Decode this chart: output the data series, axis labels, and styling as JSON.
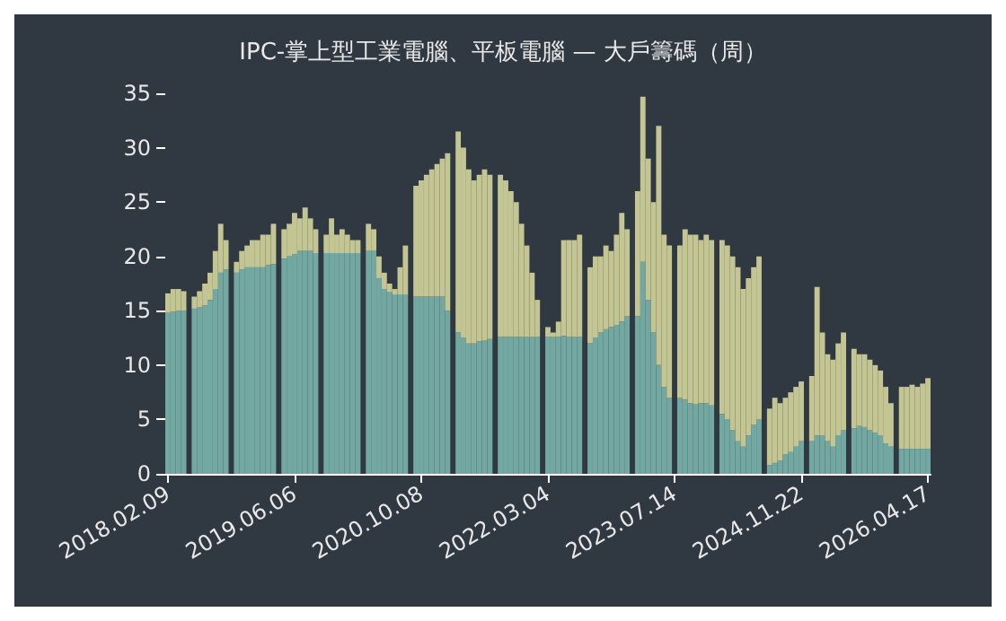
{
  "chart_data": {
    "type": "bar",
    "title": "IPC-掌上型工業電腦、平板電腦 — 大戶籌碼（周）",
    "stacked": true,
    "categories": [
      "2018.02.09",
      null,
      null,
      null,
      null,
      null,
      null,
      null,
      null,
      null,
      null,
      null,
      null,
      null,
      null,
      null,
      null,
      null,
      null,
      null,
      null,
      null,
      null,
      null,
      "2019.06.06",
      null,
      null,
      null,
      null,
      null,
      null,
      null,
      null,
      null,
      null,
      null,
      null,
      null,
      null,
      null,
      null,
      null,
      null,
      null,
      null,
      null,
      null,
      null,
      "2020.10.08",
      null,
      null,
      null,
      null,
      null,
      null,
      null,
      null,
      null,
      null,
      null,
      null,
      null,
      null,
      null,
      null,
      null,
      null,
      null,
      null,
      null,
      null,
      null,
      "2022.03.04",
      null,
      null,
      null,
      null,
      null,
      null,
      null,
      null,
      null,
      null,
      null,
      null,
      null,
      null,
      null,
      null,
      null,
      null,
      null,
      null,
      null,
      null,
      null,
      "2023.07.14",
      null,
      null,
      null,
      null,
      null,
      null,
      null,
      null,
      null,
      null,
      null,
      null,
      null,
      null,
      null,
      null,
      null,
      null,
      null,
      null,
      null,
      null,
      null,
      "2024.11.22",
      null,
      null,
      null,
      null,
      null,
      null,
      null,
      null,
      null,
      null,
      null,
      null,
      null,
      null,
      null,
      null,
      null,
      null,
      null,
      null,
      null,
      null,
      null,
      "2026.04.17"
    ],
    "series": [
      {
        "color": "#72a8a1",
        "values": [
          14.8,
          14.9,
          15,
          15,
          null,
          15.2,
          15.3,
          15.5,
          16,
          17,
          18.5,
          18.8,
          null,
          18.5,
          18.8,
          19,
          19,
          19,
          19,
          19.2,
          19.3,
          null,
          19.8,
          20,
          20.2,
          20.5,
          20.5,
          20.5,
          20.3,
          null,
          20.3,
          20.3,
          20.3,
          20.3,
          20.3,
          20.3,
          20.3,
          null,
          20.5,
          20.5,
          18,
          17,
          16.7,
          16.5,
          16.5,
          16.5,
          null,
          16.3,
          16.3,
          16.3,
          16.3,
          16.3,
          16.3,
          15,
          null,
          13,
          12.5,
          12,
          12,
          12.2,
          12.3,
          12.4,
          null,
          12.6,
          12.6,
          12.6,
          12.6,
          12.6,
          12.6,
          12.6,
          12.6,
          null,
          12.6,
          12.6,
          12.6,
          12.7,
          12.6,
          12.6,
          12.6,
          null,
          12,
          12.5,
          13,
          13.3,
          13.5,
          13.7,
          14,
          14.5,
          null,
          14.5,
          19.5,
          16,
          13,
          10,
          8,
          7,
          null,
          7,
          6.8,
          6.5,
          6.4,
          6.5,
          6.5,
          6.3,
          null,
          5.5,
          5,
          4,
          3,
          2.5,
          3.5,
          4.5,
          5,
          null,
          0.8,
          1,
          1.2,
          1.8,
          2,
          2.5,
          3,
          null,
          3,
          3.5,
          3.5,
          3,
          2.5,
          3.5,
          4,
          null,
          4.2,
          4.4,
          4.3,
          4,
          3.8,
          3.5,
          2.8,
          2.5,
          null,
          2.3,
          2.3,
          2.3,
          2.3,
          2.3,
          2.3
        ]
      },
      {
        "color": "#c3c592",
        "values": [
          1.8,
          2.1,
          2,
          1.8,
          null,
          1.1,
          1.5,
          2,
          2.5,
          3.5,
          4.5,
          2.7,
          null,
          1,
          1.7,
          2,
          2.5,
          2.5,
          3,
          2.8,
          3.7,
          null,
          2.7,
          3,
          3.8,
          3,
          4,
          3,
          2.2,
          null,
          1.7,
          3.2,
          1.7,
          2.2,
          1.7,
          1.2,
          1.2,
          null,
          2.5,
          2,
          2,
          1.5,
          0.8,
          0.5,
          2.5,
          4.5,
          null,
          10.2,
          10.7,
          11.2,
          11.7,
          12.2,
          12.7,
          14.5,
          null,
          18.5,
          17.5,
          16,
          15,
          15.3,
          15.7,
          15.1,
          null,
          14.9,
          14.4,
          13.4,
          12.4,
          10.4,
          8.4,
          5.9,
          3.4,
          null,
          0.9,
          0.4,
          1.4,
          8.8,
          8.9,
          8.9,
          9.4,
          null,
          7,
          7.5,
          7,
          7.7,
          7,
          8.3,
          10,
          8,
          null,
          11.5,
          15.2,
          13,
          12,
          22,
          14,
          14,
          null,
          14,
          15.7,
          15.5,
          15.6,
          15,
          15.5,
          15.2,
          null,
          16,
          16,
          16,
          16,
          14.5,
          14.5,
          14.5,
          15,
          null,
          5.2,
          6,
          5.3,
          5.2,
          5.5,
          5.5,
          5.5,
          null,
          6,
          13.7,
          9.5,
          8,
          8,
          8.5,
          9,
          null,
          7.3,
          6.6,
          6.7,
          6.5,
          6.2,
          6,
          5.2,
          4,
          null,
          5.7,
          5.7,
          5.9,
          5.7,
          6,
          6.5
        ]
      }
    ],
    "ylim": [
      0,
      35
    ],
    "yticks": [
      0,
      5,
      10,
      15,
      20,
      25,
      30,
      35
    ]
  }
}
